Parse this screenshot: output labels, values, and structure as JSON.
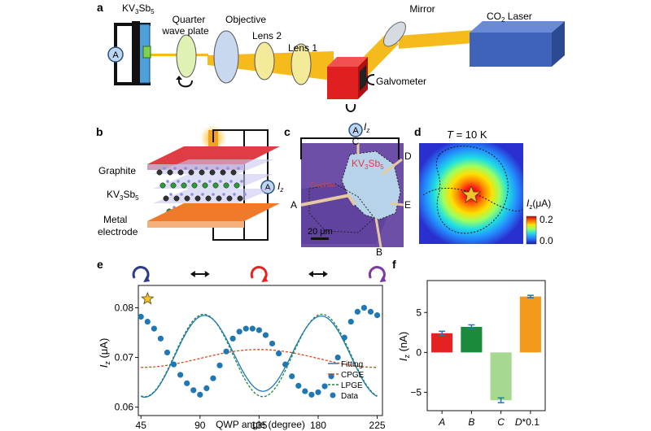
{
  "panels": {
    "a": "a",
    "b": "b",
    "c": "c",
    "d": "d",
    "e": "e",
    "f": "f"
  },
  "panel_a": {
    "sample_main": "KV",
    "sample_sub1": "3",
    "sample_mid": "Sb",
    "sample_sub2": "5",
    "ammeter": "A",
    "quarter_wave_plate_line1": "Quarter",
    "quarter_wave_plate_line2": "wave plate",
    "objective": "Objective",
    "lens2": "Lens 2",
    "lens1": "Lens 1",
    "mirror": "Mirror",
    "laser_main": "CO",
    "laser_sub": "2",
    "laser_rest": " Laser",
    "galvometer": "Galvometer",
    "colors": {
      "beam": "#f5bb1c",
      "sample": "#4f9fd8",
      "laser": "#3f63b8",
      "cube": "#e02020"
    }
  },
  "panel_b": {
    "graphite": "Graphite",
    "crystal_main": "KV",
    "crystal_sub1": "3",
    "crystal_mid": "Sb",
    "crystal_sub2": "5",
    "metal_line1": "Metal",
    "metal_line2": "electrode",
    "ammeter": "A",
    "current_main": "I",
    "current_sub": "z"
  },
  "panel_c": {
    "ammeter": "A",
    "current_main": "I",
    "current_sub": "z",
    "contacts": [
      "A",
      "B",
      "C",
      "D",
      "E"
    ],
    "crystal_main": "KV",
    "crystal_sub1": "3",
    "crystal_mid": "Sb",
    "crystal_sub2": "5",
    "graphite_label": "Graphite",
    "scale_bar": "20 μm"
  },
  "panel_d": {
    "temperature_italic": "T",
    "temperature_rest": " = 10 K",
    "colorbar_label_main": "I",
    "colorbar_label_sub": "z",
    "colorbar_label_rest": "(μA)",
    "colorbar_max": "0.2",
    "colorbar_min": "0.0"
  },
  "chart_data": [
    {
      "type": "line",
      "panel": "e",
      "xlabel": "QWP angle (degree)",
      "ylabel_main": "I",
      "ylabel_sub": "z",
      "ylabel_rest": " (μA)",
      "xlim": [
        43,
        229
      ],
      "ylim": [
        0.0583,
        0.0845
      ],
      "xticks": [
        45,
        90,
        135,
        180,
        225
      ],
      "yticks": [
        0.06,
        0.07,
        0.08
      ],
      "xtick_labels": [
        "45",
        "90",
        "135",
        "180",
        "225"
      ],
      "ytick_labels": [
        "0.06",
        "0.07",
        "0.08"
      ],
      "legend": [
        "Fitting",
        "CPGE",
        "LPGE",
        "Data"
      ],
      "legend_position": "bottom-right",
      "polarization_marker_angles": [
        45,
        90,
        135,
        180,
        225
      ],
      "series": [
        {
          "name": "Data",
          "x": [
            45,
            50,
            55,
            60,
            65,
            70,
            75,
            80,
            85,
            90,
            95,
            100,
            105,
            110,
            115,
            120,
            125,
            130,
            135,
            140,
            145,
            150,
            155,
            160,
            165,
            170,
            175,
            180,
            185,
            190,
            195,
            200,
            205,
            210,
            215,
            220,
            225
          ],
          "values": [
            0.0782,
            0.0772,
            0.0758,
            0.0738,
            0.071,
            0.0686,
            0.0665,
            0.0648,
            0.0634,
            0.0625,
            0.0638,
            0.0658,
            0.0684,
            0.0712,
            0.0738,
            0.0752,
            0.0758,
            0.0758,
            0.0755,
            0.0745,
            0.0728,
            0.0708,
            0.0686,
            0.0662,
            0.0643,
            0.0632,
            0.0625,
            0.063,
            0.0642,
            0.0662,
            0.07,
            0.074,
            0.0772,
            0.0792,
            0.08,
            0.0792,
            0.0785
          ]
        },
        {
          "name": "Fitting",
          "x": [
            45,
            225
          ],
          "model": "c - 0.0006*sin(2a) + 0.0080*sin(4a+phi)"
        },
        {
          "name": "CPGE",
          "x": [
            45,
            225
          ],
          "model": "0.0705 - 0.0020*sin(2a)"
        },
        {
          "name": "LPGE",
          "x": [
            45,
            225
          ],
          "model": "0.0700 + 0.0080*sin(4a+phi)"
        }
      ]
    },
    {
      "type": "bar",
      "panel": "f",
      "categories": [
        "A",
        "B",
        "C",
        "D*0.1"
      ],
      "values": [
        2.4,
        3.2,
        -6.0,
        7.0
      ],
      "errors": [
        0.25,
        0.25,
        0.3,
        0.15
      ],
      "colors": [
        "#e52222",
        "#1a8a3c",
        "#a6d88f",
        "#f39a1c"
      ],
      "ylabel_main": "I",
      "ylabel_sub": "z",
      "ylabel_rest": " (nA)",
      "yticks": [
        -5,
        0,
        5
      ],
      "ytick_labels": [
        "−5",
        "0",
        "5"
      ],
      "ylim": [
        -7.3,
        9.0
      ],
      "category_labels": [
        "A",
        "B",
        "C",
        "D"
      ],
      "d_suffix": "*0.1"
    }
  ]
}
